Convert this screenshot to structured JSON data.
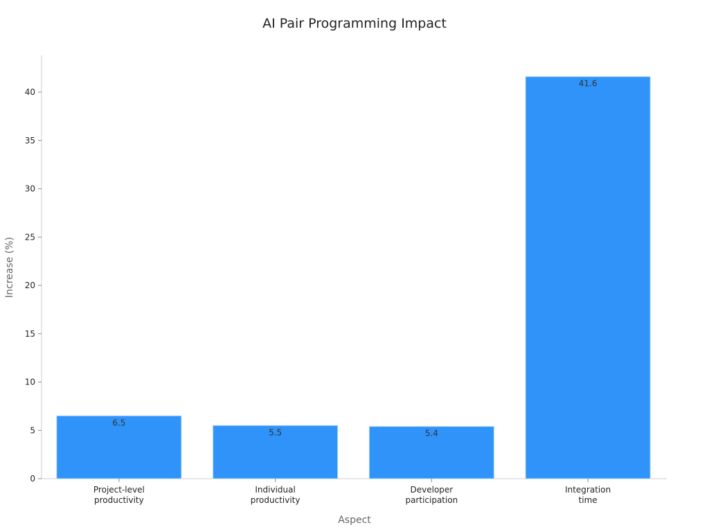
{
  "chart_data": {
    "type": "bar",
    "title": "AI Pair Programming Impact",
    "xlabel": "Aspect",
    "ylabel": "Increase (%)",
    "categories": [
      [
        "Project-level",
        "productivity"
      ],
      [
        "Individual",
        "productivity"
      ],
      [
        "Developer",
        "participation"
      ],
      [
        "Integration",
        "time"
      ]
    ],
    "values": [
      6.5,
      5.5,
      5.4,
      41.6
    ],
    "data_labels": [
      "6.5",
      "5.5",
      "5.4",
      "41.6"
    ],
    "yticks": [
      0,
      5,
      10,
      15,
      20,
      25,
      30,
      35,
      40
    ],
    "ylim": [
      0,
      43.8
    ],
    "grid": false,
    "colors": {
      "bar": "#2f93f9",
      "bar_edge": "#a9d3fb",
      "axis": "#cccccc"
    }
  }
}
